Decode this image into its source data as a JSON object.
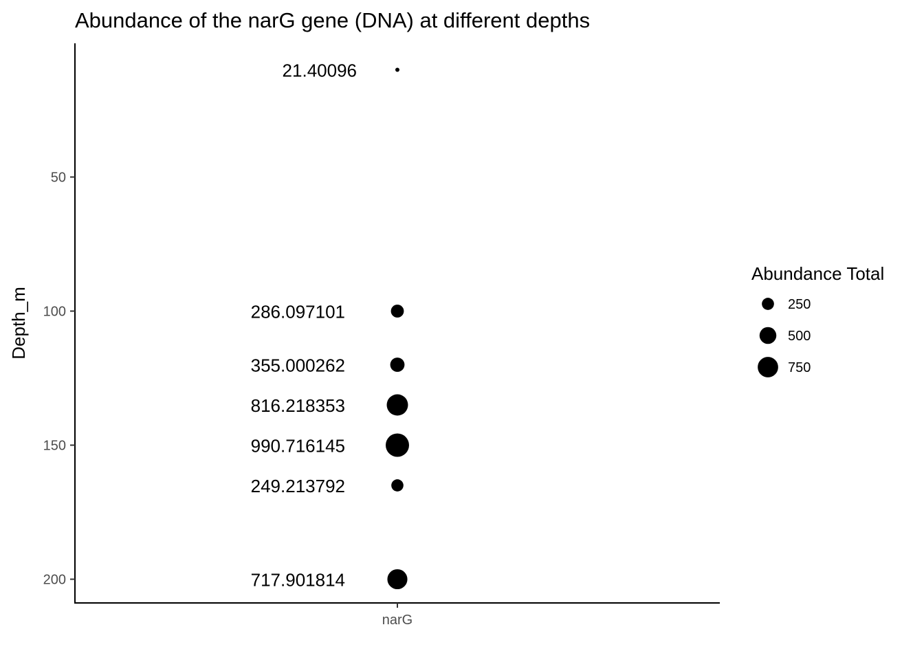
{
  "chart_data": {
    "type": "scatter",
    "title": "Abundance of the narG gene (DNA) at different depths",
    "xlabel": "",
    "ylabel": "Depth_m",
    "x_categories": [
      "narG"
    ],
    "y_reversed": true,
    "ylim": [
      210,
      0
    ],
    "yticks": [
      50,
      100,
      150,
      200
    ],
    "grid": false,
    "legend": {
      "title": "Abundance Total",
      "placement": "right",
      "entries": [
        {
          "label": "250",
          "value": 250
        },
        {
          "label": "500",
          "value": 500
        },
        {
          "label": "750",
          "value": 750
        }
      ]
    },
    "points": [
      {
        "x": "narG",
        "depth": 10,
        "abundance": 21.40096,
        "label": "21.40096"
      },
      {
        "x": "narG",
        "depth": 100,
        "abundance": 286.097101,
        "label": "286.097101"
      },
      {
        "x": "narG",
        "depth": 120,
        "abundance": 355.000262,
        "label": "355.000262"
      },
      {
        "x": "narG",
        "depth": 135,
        "abundance": 816.218353,
        "label": "816.218353"
      },
      {
        "x": "narG",
        "depth": 150,
        "abundance": 990.716145,
        "label": "990.716145"
      },
      {
        "x": "narG",
        "depth": 165,
        "abundance": 249.213792,
        "label": "249.213792"
      },
      {
        "x": "narG",
        "depth": 200,
        "abundance": 717.901814,
        "label": "717.901814"
      }
    ],
    "marker_color": "#000000"
  }
}
